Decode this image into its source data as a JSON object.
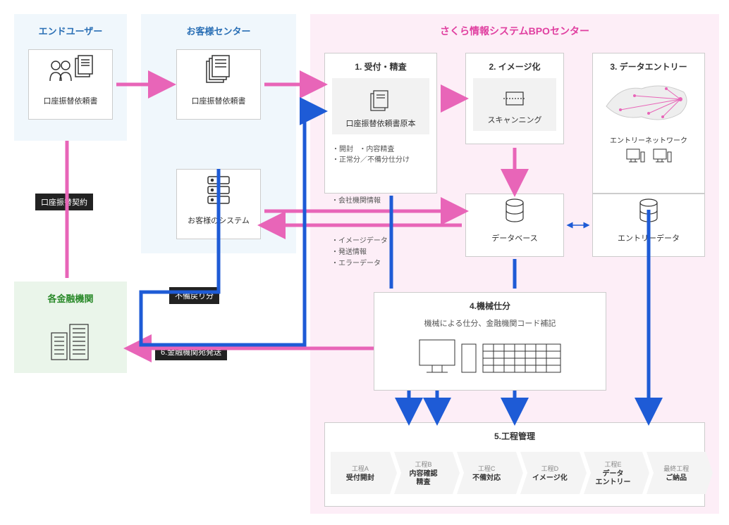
{
  "colors": {
    "blue_arrow": "#1e5bd6",
    "pink_arrow": "#e865b8",
    "region_blue": "#f0f7fc",
    "region_pink": "#fdeef7",
    "region_green": "#eaf5ea"
  },
  "regions": {
    "end_user": {
      "title": "エンドユーザー",
      "box_label": "口座振替依頼書"
    },
    "customer_center": {
      "title": "お客様センター",
      "box1_label": "口座振替依頼書",
      "box2_label": "お客様のシステム"
    },
    "bpo_center": {
      "title": "さくら情報システムBPOセンター"
    },
    "finance": {
      "title": "各金融機関"
    }
  },
  "labels": {
    "contract": "口座振替契約",
    "defect_return": "不備戻り分",
    "send_to_bank": "6.金融機関宛発送",
    "company_info": "・会社機関情報",
    "image_data": "・イメージデータ",
    "send_info": "・発送情報",
    "error_data": "・エラーデータ"
  },
  "bpo": {
    "step1": {
      "title": "1. 受付・精査",
      "sub": "口座振替依頼書原本",
      "b1": "・開封",
      "b2": "・内容精査",
      "b3": "・正常分／不備分仕分け"
    },
    "step2": {
      "title": "2. イメージ化",
      "sub": "スキャンニング"
    },
    "step3": {
      "title": "3. データエントリー",
      "net_label": "エントリーネットワーク"
    },
    "database": "データベース",
    "entry_data": "エントリーデータ",
    "step4": {
      "title": "4.機械仕分",
      "sub": "機械による仕分、金融機関コード補記"
    },
    "step5": {
      "title": "5.工程管理"
    }
  },
  "stages": [
    {
      "stage": "工程A",
      "label": "受付開封"
    },
    {
      "stage": "工程B",
      "label": "内容確認\n精査"
    },
    {
      "stage": "工程C",
      "label": "不備対応"
    },
    {
      "stage": "工程D",
      "label": "イメージ化"
    },
    {
      "stage": "工程E",
      "label": "データ\nエントリー"
    },
    {
      "stage": "最終工程",
      "label": "ご納品"
    }
  ]
}
